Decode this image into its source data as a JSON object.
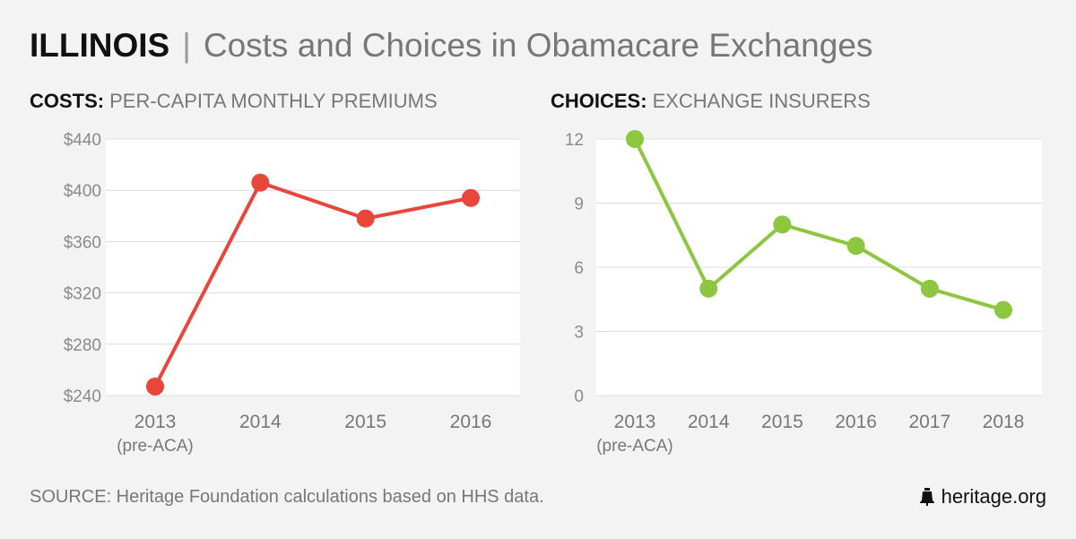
{
  "header": {
    "state": "ILLINOIS",
    "separator": "|",
    "subtitle": "Costs and Choices in Obamacare Exchanges"
  },
  "costs_section": {
    "lead": "COSTS:",
    "rest": "PER-CAPITA MONTHLY PREMIUMS"
  },
  "choices_section": {
    "lead": "CHOICES:",
    "rest": "EXCHANGE INSURERS"
  },
  "footer": {
    "source": "SOURCE: Heritage Foundation calculations based on HHS data.",
    "brand": "heritage.org",
    "brand_icon": "liberty-bell-icon"
  },
  "colors": {
    "costs_line": "#e8463b",
    "choices_line": "#8dc63f",
    "grid": "#dcdcdc",
    "plot_bg": "#ffffff",
    "axis_text": "#8a8a8a"
  },
  "chart_data": [
    {
      "type": "line",
      "title": "PER-CAPITA MONTHLY PREMIUMS",
      "categories": [
        "2013",
        "2014",
        "2015",
        "2016"
      ],
      "category_sublabels": [
        "(pre-ACA)",
        "",
        "",
        ""
      ],
      "values": [
        247,
        406,
        378,
        394
      ],
      "ylim": [
        240,
        440
      ],
      "yticks": [
        240,
        280,
        320,
        360,
        400,
        440
      ],
      "ytick_labels": [
        "$240",
        "$280",
        "$320",
        "$360",
        "$400",
        "$440"
      ],
      "grid": true,
      "series_name": "Premiums"
    },
    {
      "type": "line",
      "title": "EXCHANGE INSURERS",
      "categories": [
        "2013",
        "2014",
        "2015",
        "2016",
        "2017",
        "2018"
      ],
      "category_sublabels": [
        "(pre-ACA)",
        "",
        "",
        "",
        "",
        ""
      ],
      "values": [
        12,
        5,
        8,
        7,
        5,
        4
      ],
      "ylim": [
        0,
        12
      ],
      "yticks": [
        0,
        3,
        6,
        9,
        12
      ],
      "ytick_labels": [
        "0",
        "3",
        "6",
        "9",
        "12"
      ],
      "grid": true,
      "series_name": "Insurers"
    }
  ]
}
